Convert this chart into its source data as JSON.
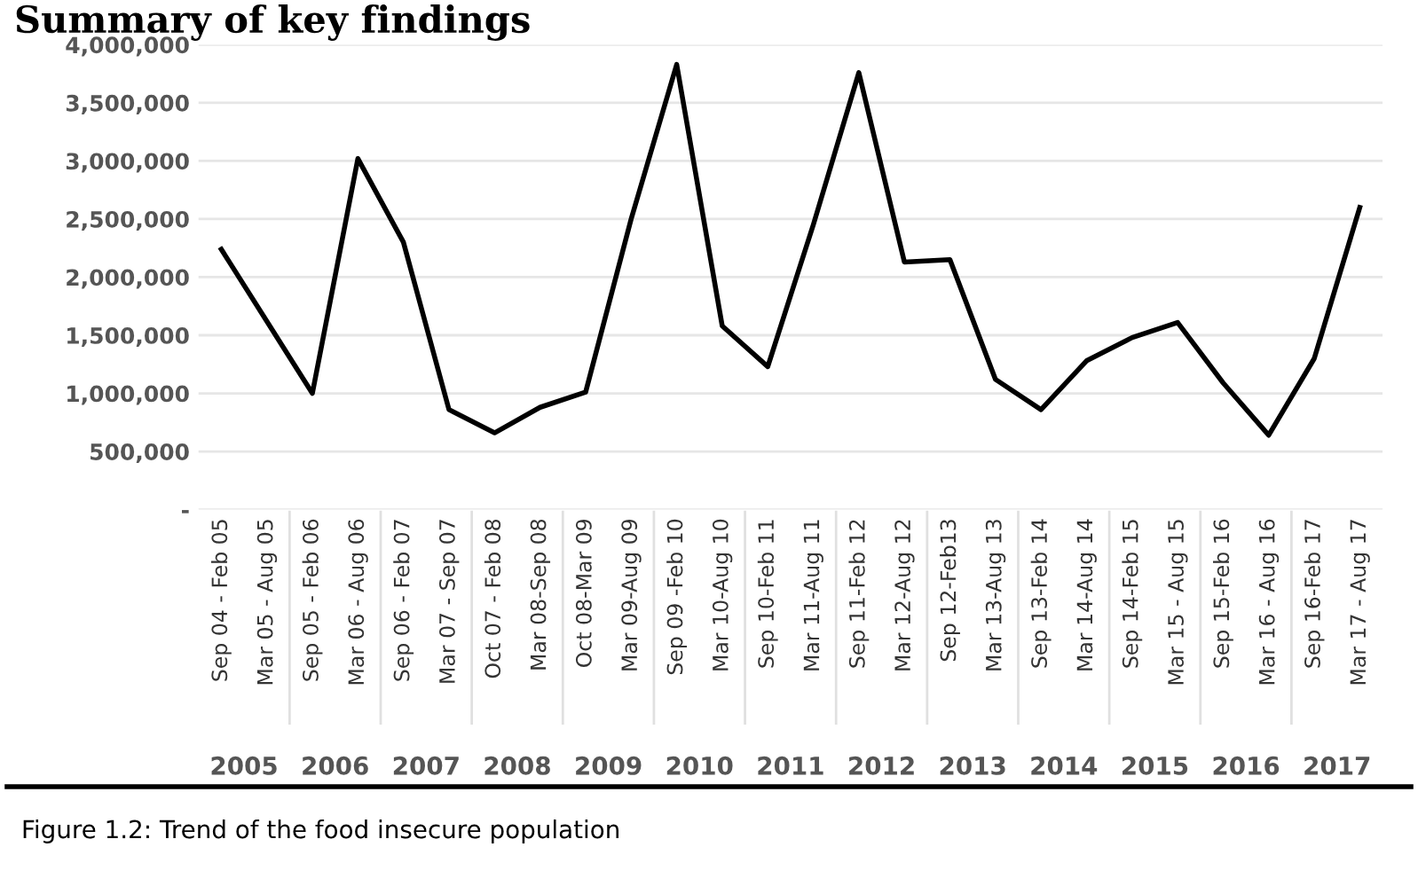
{
  "chart_data": {
    "type": "line",
    "title": "Summary of key findings",
    "categories": [
      "Sep 04 - Feb 05",
      "Mar 05 - Aug 05",
      "Sep 05 - Feb 06",
      "Mar 06 - Aug 06",
      "Sep 06 - Feb 07",
      "Mar 07 - Sep 07",
      "Oct 07 - Feb 08",
      "Mar 08-Sep 08",
      "Oct 08-Mar 09",
      "Mar 09-Aug 09",
      "Sep 09 -Feb 10",
      "Mar 10-Aug 10",
      "Sep 10-Feb 11",
      "Mar 11-Aug 11",
      "Sep 11-Feb 12",
      "Mar 12-Aug 12",
      "Sep 12-Feb13",
      "Mar 13-Aug 13",
      "Sep 13-Feb 14",
      "Mar 14-Aug 14",
      "Sep 14-Feb 15",
      "Mar 15 - Aug 15",
      "Sep 15-Feb 16",
      "Mar 16 - Aug 16",
      "Sep 16-Feb 17",
      "Mar 17 - Aug 17"
    ],
    "series": [
      {
        "color": "#000000",
        "values": [
          2240000,
          1620000,
          1000000,
          3020000,
          2300000,
          860000,
          660000,
          880000,
          1010000,
          2500000,
          3830000,
          1580000,
          1230000,
          2450000,
          3760000,
          2130000,
          2150000,
          1120000,
          860000,
          1280000,
          1480000,
          1610000,
          1090000,
          640000,
          1300000,
          2600000
        ]
      }
    ],
    "ylim": [
      0,
      4000000
    ],
    "yticks": [
      {
        "value": 0,
        "label": "-"
      },
      {
        "value": 500000,
        "label": "500,000"
      },
      {
        "value": 1000000,
        "label": "1,000,000"
      },
      {
        "value": 1500000,
        "label": "1,500,000"
      },
      {
        "value": 2000000,
        "label": "2,000,000"
      },
      {
        "value": 2500000,
        "label": "2,500,000"
      },
      {
        "value": 3000000,
        "label": "3,000,000"
      },
      {
        "value": 3500000,
        "label": "3,500,000"
      },
      {
        "value": 4000000,
        "label": "4,000,000"
      }
    ],
    "grid": "y",
    "marker": "none",
    "line_style": "solid",
    "annotations": [
      "2005",
      "2006",
      "2007",
      "2008",
      "2009",
      "2010",
      "2011",
      "2012",
      "2013",
      "2014",
      "2015",
      "2016",
      "2017",
      "Figure 1.2: Trend of the food insecure population"
    ]
  }
}
